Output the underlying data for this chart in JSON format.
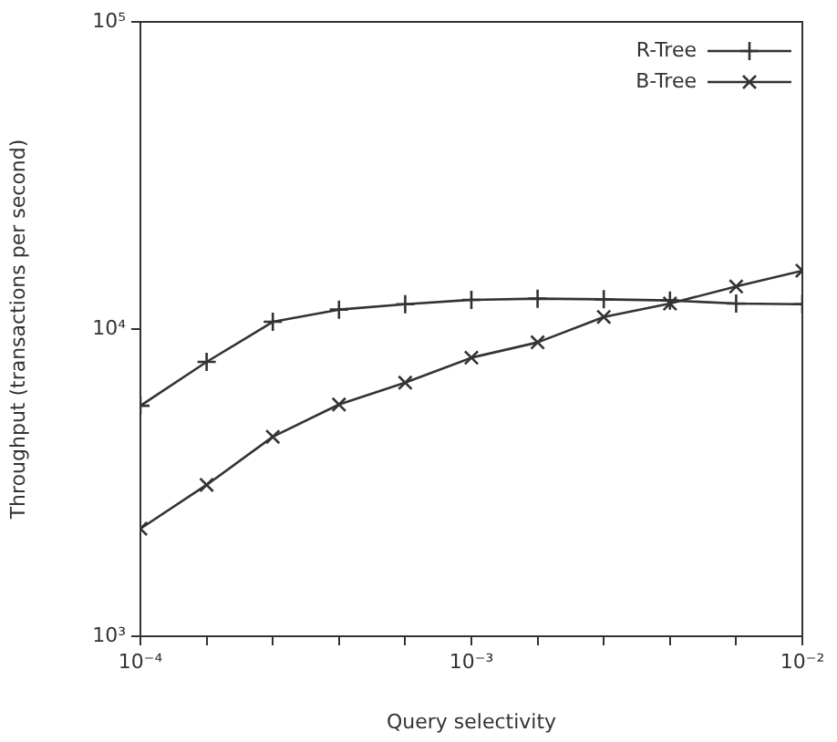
{
  "chart_data": {
    "type": "line",
    "xlabel": "Query selectivity",
    "ylabel": "Throughput (transactions per second)",
    "x": [
      0.0001,
      0.0001585,
      0.0002512,
      0.0003981,
      0.000631,
      0.001,
      0.001585,
      0.002512,
      0.003981,
      0.00631,
      0.01
    ],
    "series": [
      {
        "name": "R-Tree",
        "color": "#333333",
        "marker": "cross",
        "values": [
          5630,
          7820,
          10560,
          11570,
          12050,
          12450,
          12560,
          12500,
          12390,
          12110,
          12050
        ]
      },
      {
        "name": "B-Tree",
        "color": "#333333",
        "marker": "x",
        "values": [
          2240,
          3110,
          4460,
          5680,
          6690,
          8070,
          9050,
          10950,
          12110,
          13760,
          15490
        ]
      }
    ],
    "log": "xy",
    "xlim": [
      0.0001,
      0.01
    ],
    "ylim": [
      1000,
      100000
    ],
    "xticks": [
      {
        "value": 0.0001,
        "label": "10⁻⁴"
      },
      {
        "value": 0.0001585,
        "label": null
      },
      {
        "value": 0.0002512,
        "label": null
      },
      {
        "value": 0.0003981,
        "label": null
      },
      {
        "value": 0.000631,
        "label": null
      },
      {
        "value": 0.001,
        "label": "10⁻³"
      },
      {
        "value": 0.001585,
        "label": null
      },
      {
        "value": 0.002512,
        "label": null
      },
      {
        "value": 0.003981,
        "label": null
      },
      {
        "value": 0.00631,
        "label": null
      },
      {
        "value": 0.01,
        "label": "10⁻²"
      }
    ],
    "yticks": [
      {
        "value": 1000,
        "label": "10³"
      },
      {
        "value": 10000,
        "label": "10⁴"
      },
      {
        "value": 100000,
        "label": "10⁵"
      }
    ],
    "grid": false,
    "legend": "top right",
    "line_style": "solid"
  }
}
